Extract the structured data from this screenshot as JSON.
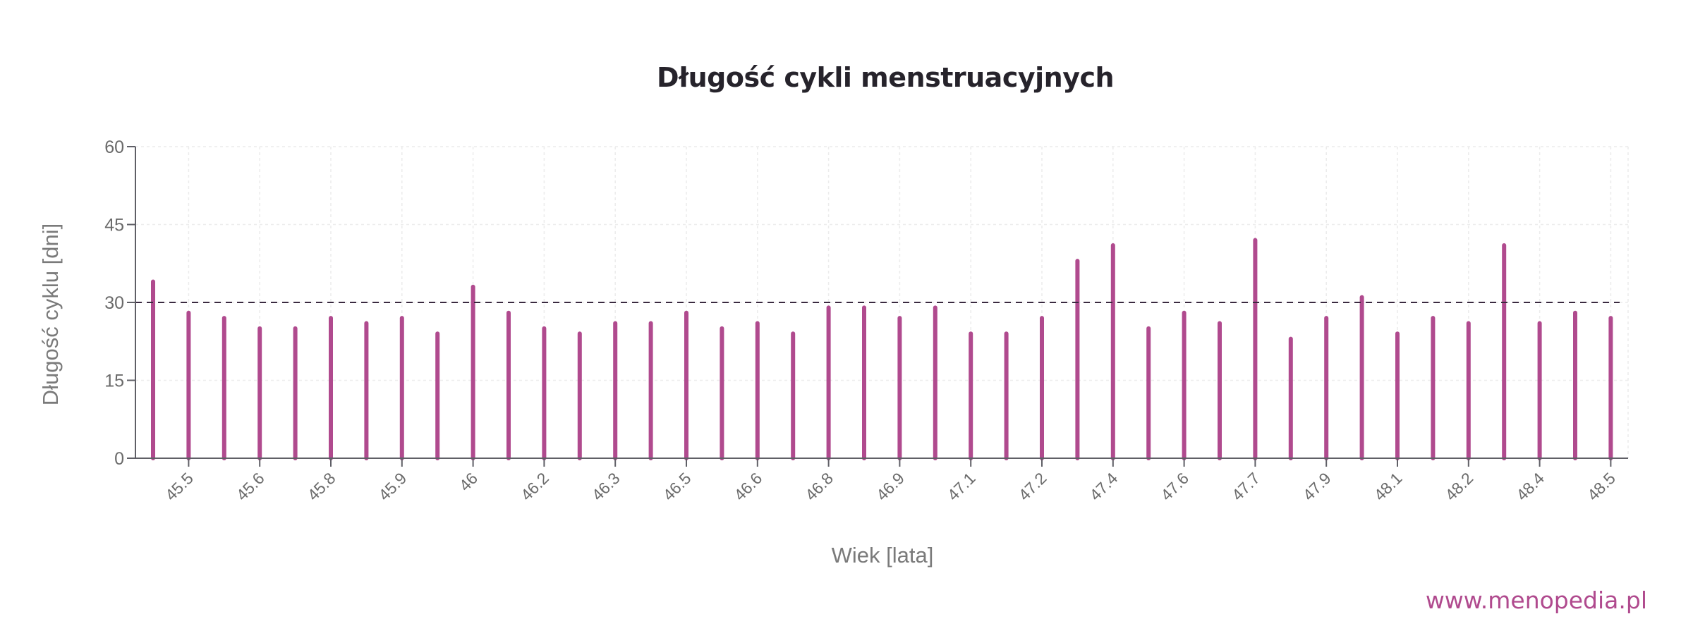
{
  "title": "Długość cykli menstruacyjnych",
  "watermark": "www.menopedia.pl",
  "colors": {
    "bar": "#b04a8e",
    "reference_line": "#3a2a40",
    "axis": "#5f5f66",
    "grid": "#ececec",
    "title": "#26232b",
    "axis_text": "#6b6b6b",
    "watermark": "#b04a8e"
  },
  "chart_data": {
    "type": "bar",
    "title": "Długość cykli menstruacyjnych",
    "xlabel": "Wiek [lata]",
    "ylabel": "Długość cyklu [dni]",
    "ylim": [
      0,
      60
    ],
    "yticks": [
      0,
      15,
      30,
      45,
      60
    ],
    "grid": true,
    "legend": null,
    "reference_line": {
      "y": 30,
      "style": "dashed"
    },
    "xtick_labels": [
      "45.5",
      "45.6",
      "45.8",
      "45.9",
      "46",
      "46.2",
      "46.3",
      "46.5",
      "46.6",
      "46.8",
      "46.9",
      "47.1",
      "47.2",
      "47.4",
      "47.6",
      "47.7",
      "47.9",
      "48.1",
      "48.2",
      "48.4",
      "48.5"
    ],
    "values": [
      34,
      28,
      27,
      25,
      25,
      27,
      26,
      27,
      24,
      33,
      28,
      25,
      24,
      26,
      26,
      28,
      25,
      26,
      24,
      29,
      29,
      27,
      29,
      24,
      24,
      27,
      38,
      41,
      25,
      28,
      26,
      42,
      23,
      27,
      31,
      24,
      27,
      26,
      41,
      26,
      28,
      27
    ]
  }
}
